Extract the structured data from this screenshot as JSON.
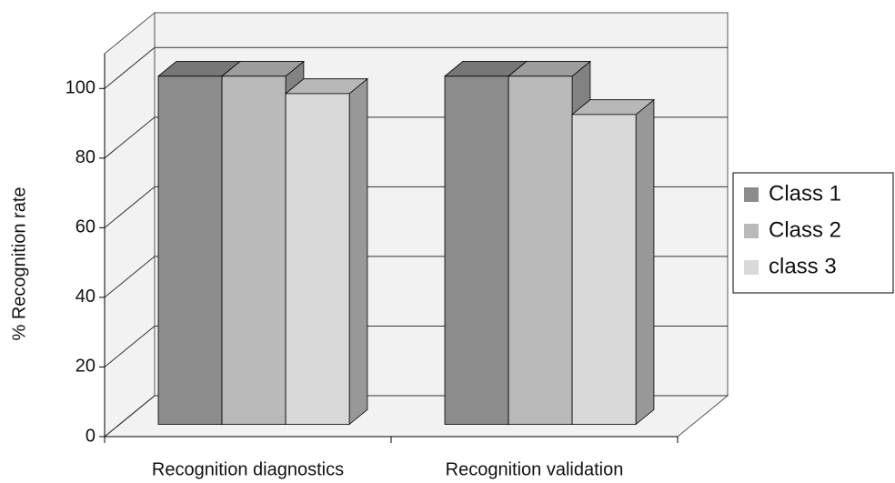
{
  "chart_data": {
    "type": "bar3d",
    "y_label": "% Recognition rate",
    "categories": [
      "Recognition diagnostics",
      "Recognition validation"
    ],
    "series": [
      {
        "name": "Class 1",
        "color": "#8c8c8c",
        "values": [
          100,
          100
        ]
      },
      {
        "name": "Class 2",
        "color": "#b9b9b9",
        "values": [
          100,
          100
        ]
      },
      {
        "name": "class 3",
        "color": "#d9d9d9",
        "values": [
          95,
          89
        ]
      }
    ],
    "ylim": [
      0,
      110
    ],
    "yticks": [
      0,
      20,
      40,
      60,
      80,
      100
    ],
    "grid": true,
    "legend": "right"
  }
}
